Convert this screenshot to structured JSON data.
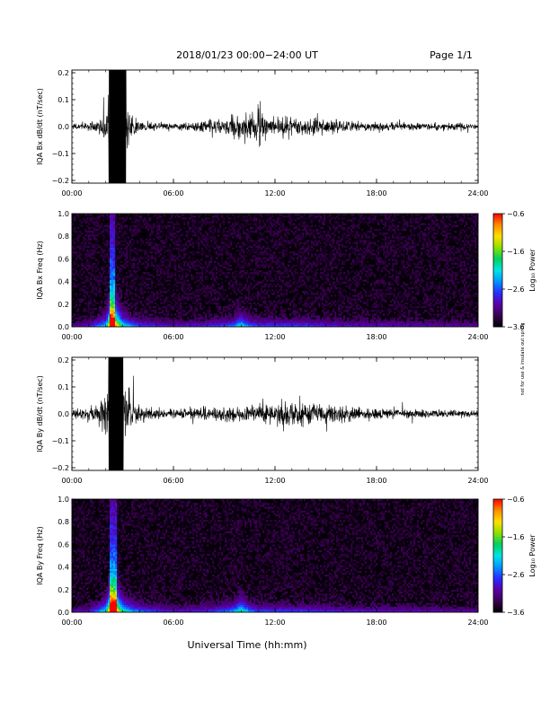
{
  "header": {
    "title": "2018/01/23  00:00−24:00 UT",
    "page": "Page 1/1"
  },
  "footer": {
    "xlabel": "Universal Time (hh:mm)",
    "credit": "not for use & insulate out spring"
  },
  "colors": {
    "trace": "#000000",
    "spectrogram_background": "#050008",
    "colormap": [
      "#000000",
      "#3c0052",
      "#5a00a8",
      "#2a2dff",
      "#0096ff",
      "#00e5e5",
      "#00d060",
      "#8ee000",
      "#ffe000",
      "#ff8c00",
      "#ff0000"
    ]
  },
  "chart_data": [
    {
      "type": "line",
      "ylabel": "IQA Bx dB/dt (nT/sec)",
      "xlim": [
        0,
        24
      ],
      "ylim": [
        -0.21,
        0.21
      ],
      "xticks": [
        "00:00",
        "06:00",
        "12:00",
        "18:00",
        "24:00"
      ],
      "yticks": [
        {
          "v": 0.2,
          "t": "0.2"
        },
        {
          "v": 0.1,
          "t": "0.1"
        },
        {
          "v": 0.0,
          "t": "0.0"
        },
        {
          "v": -0.1,
          "t": "−0.1"
        },
        {
          "v": -0.2,
          "t": "−0.2"
        }
      ],
      "envelope": {
        "hours": [
          0,
          1,
          1.5,
          2.0,
          2.2,
          2.4,
          2.6,
          2.8,
          3.0,
          3.2,
          3.5,
          4,
          5,
          6,
          7,
          8,
          9,
          9.8,
          10.5,
          11.0,
          11.5,
          12,
          12.5,
          13,
          14,
          15,
          16,
          17,
          18,
          19,
          20,
          21,
          22,
          23,
          24
        ],
        "amplitude": [
          0.022,
          0.025,
          0.04,
          0.11,
          0.21,
          0.21,
          0.21,
          0.21,
          0.21,
          0.2,
          0.08,
          0.035,
          0.025,
          0.022,
          0.03,
          0.04,
          0.05,
          0.085,
          0.07,
          0.12,
          0.06,
          0.06,
          0.065,
          0.05,
          0.06,
          0.045,
          0.035,
          0.03,
          0.03,
          0.028,
          0.025,
          0.024,
          0.022,
          0.025,
          0.02
        ]
      }
    },
    {
      "type": "heatmap",
      "ylabel": "IQA Bx Freq (Hz)",
      "xlim": [
        0,
        24
      ],
      "ylim": [
        0,
        1.0
      ],
      "xticks": [
        "00:00",
        "06:00",
        "12:00",
        "18:00",
        "24:00"
      ],
      "yticks": [
        {
          "v": 1.0,
          "t": "1.0"
        },
        {
          "v": 0.8,
          "t": "0.8"
        },
        {
          "v": 0.6,
          "t": "0.6"
        },
        {
          "v": 0.4,
          "t": "0.4"
        },
        {
          "v": 0.2,
          "t": "0.2"
        },
        {
          "v": 0.0,
          "t": "0.0"
        }
      ],
      "colorbar": {
        "label": "Log₁₀ Power",
        "range": [
          -3.6,
          -0.6
        ],
        "ticks": [
          "−0.6",
          "−1.6",
          "−2.6",
          "−3.6"
        ]
      },
      "activity": {
        "hours": [
          0,
          1,
          2.0,
          2.3,
          2.6,
          3.0,
          3.5,
          4,
          6,
          8,
          9.5,
          10.0,
          10.5,
          11,
          12,
          14,
          16,
          18,
          20,
          22,
          24
        ],
        "strength": [
          0.15,
          0.2,
          0.5,
          1.0,
          0.9,
          0.55,
          0.4,
          0.3,
          0.2,
          0.25,
          0.35,
          0.55,
          0.35,
          0.3,
          0.3,
          0.28,
          0.22,
          0.2,
          0.18,
          0.16,
          0.15
        ]
      }
    },
    {
      "type": "line",
      "ylabel": "IQA By dB/dt (nT/sec)",
      "xlim": [
        0,
        24
      ],
      "ylim": [
        -0.21,
        0.21
      ],
      "xticks": [
        "00:00",
        "06:00",
        "12:00",
        "18:00",
        "24:00"
      ],
      "yticks": [
        {
          "v": 0.2,
          "t": "0.2"
        },
        {
          "v": 0.1,
          "t": "0.1"
        },
        {
          "v": 0.0,
          "t": "0.0"
        },
        {
          "v": -0.1,
          "t": "−0.1"
        },
        {
          "v": -0.2,
          "t": "−0.2"
        }
      ],
      "envelope": {
        "hours": [
          0,
          1,
          1.5,
          2.0,
          2.2,
          2.4,
          2.6,
          2.8,
          3.0,
          3.3,
          3.6,
          4,
          5,
          6,
          7,
          8,
          9,
          10,
          11,
          12,
          12.5,
          13,
          14,
          15,
          16,
          17,
          18,
          19,
          20,
          21,
          22,
          23,
          24
        ],
        "amplitude": [
          0.03,
          0.035,
          0.06,
          0.15,
          0.21,
          0.21,
          0.21,
          0.21,
          0.21,
          0.13,
          0.09,
          0.05,
          0.035,
          0.03,
          0.035,
          0.04,
          0.045,
          0.05,
          0.06,
          0.065,
          0.12,
          0.07,
          0.075,
          0.06,
          0.05,
          0.04,
          0.04,
          0.035,
          0.03,
          0.03,
          0.028,
          0.025,
          0.02
        ]
      }
    },
    {
      "type": "heatmap",
      "ylabel": "IQA By Freq (Hz)",
      "xlim": [
        0,
        24
      ],
      "ylim": [
        0,
        1.0
      ],
      "xticks": [
        "00:00",
        "06:00",
        "12:00",
        "18:00",
        "24:00"
      ],
      "yticks": [
        {
          "v": 1.0,
          "t": "1.0"
        },
        {
          "v": 0.8,
          "t": "0.8"
        },
        {
          "v": 0.6,
          "t": "0.6"
        },
        {
          "v": 0.4,
          "t": "0.4"
        },
        {
          "v": 0.2,
          "t": "0.2"
        },
        {
          "v": 0.0,
          "t": "0.0"
        }
      ],
      "colorbar": {
        "label": "Log₁₀ Power",
        "range": [
          -3.6,
          -0.6
        ],
        "ticks": [
          "−0.6",
          "−1.6",
          "−2.6",
          "−3.6"
        ]
      },
      "activity": {
        "hours": [
          0,
          1,
          2.0,
          2.3,
          2.6,
          3.0,
          3.5,
          4,
          6,
          8,
          9.5,
          10.0,
          10.5,
          11,
          12,
          14,
          16,
          18,
          20,
          22,
          24
        ],
        "strength": [
          0.15,
          0.2,
          0.55,
          1.0,
          0.95,
          0.6,
          0.45,
          0.35,
          0.2,
          0.25,
          0.4,
          0.6,
          0.4,
          0.3,
          0.3,
          0.28,
          0.22,
          0.2,
          0.18,
          0.16,
          0.15
        ]
      }
    }
  ]
}
